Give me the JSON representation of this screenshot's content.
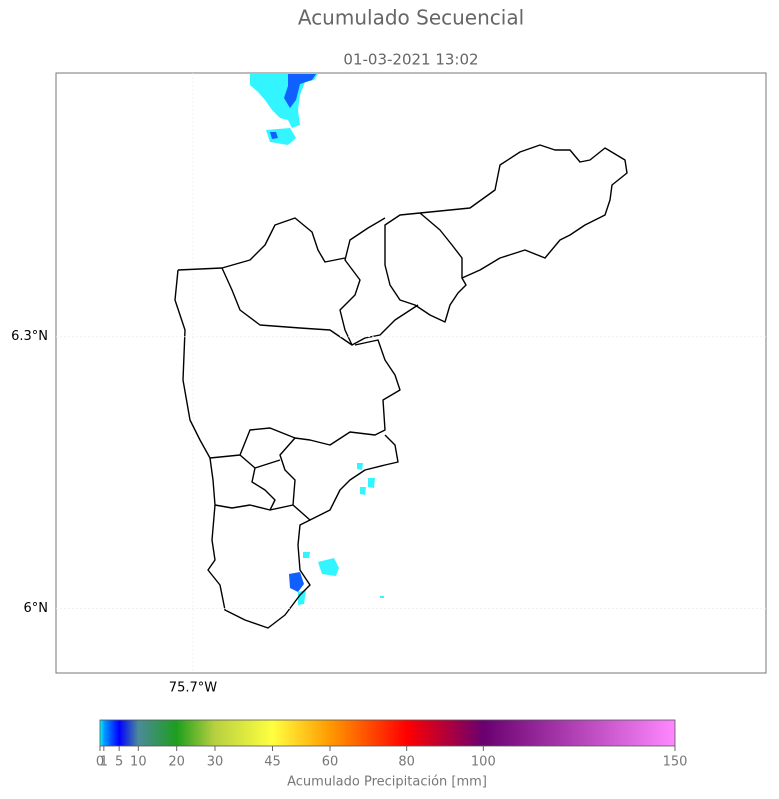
{
  "map": {
    "title": "Acumulado Secuencial",
    "subtitle": "01-03-2021 13:02",
    "xlim": [
      -75.852,
      -75.064
    ],
    "ylim": [
      5.929,
      6.591
    ],
    "xticks": [
      {
        "value": -75.7,
        "label": "75.7°W"
      }
    ],
    "yticks": [
      {
        "value": 6,
        "label": "6°N"
      },
      {
        "value": 6.3,
        "label": "6.3°N"
      }
    ],
    "grid": true,
    "colorbar": {
      "label": "Acumulado Precipitación [mm]",
      "lim": [
        0,
        150
      ],
      "ticks": [
        0,
        1,
        5,
        10,
        20,
        30,
        45,
        60,
        80,
        100,
        150
      ],
      "colors": [
        "#00ffff",
        "#00a0ff",
        "#0000ff",
        "#4a8a9a",
        "#1e9e1e",
        "#b8d040",
        "#ffff40",
        "#ff9a00",
        "#ff0000",
        "#6a0070",
        "#ff88ff"
      ]
    }
  }
}
